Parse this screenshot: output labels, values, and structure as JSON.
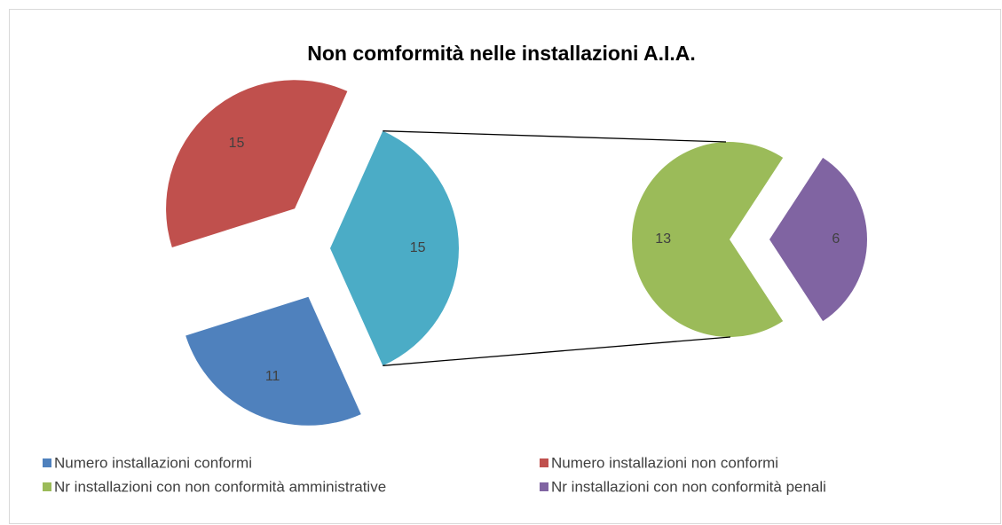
{
  "chart_data": {
    "type": "pie-of-pie",
    "title": "Non comformità nelle installazioni A.I.A.",
    "categories": [
      "Numero installazioni conformi",
      "Numero installazioni non conformi",
      null
    ],
    "values": [
      11,
      15,
      15
    ],
    "colors": [
      "#4f81bd",
      "#c0504d",
      "#4bacc6"
    ],
    "secondary": {
      "categories": [
        "Nr installazioni con non conformità amministrative",
        "Nr installazioni con non conformità penali"
      ],
      "values": [
        13,
        6
      ],
      "colors": [
        "#9bbb59",
        "#8064a2"
      ]
    },
    "legend": "bottom"
  }
}
